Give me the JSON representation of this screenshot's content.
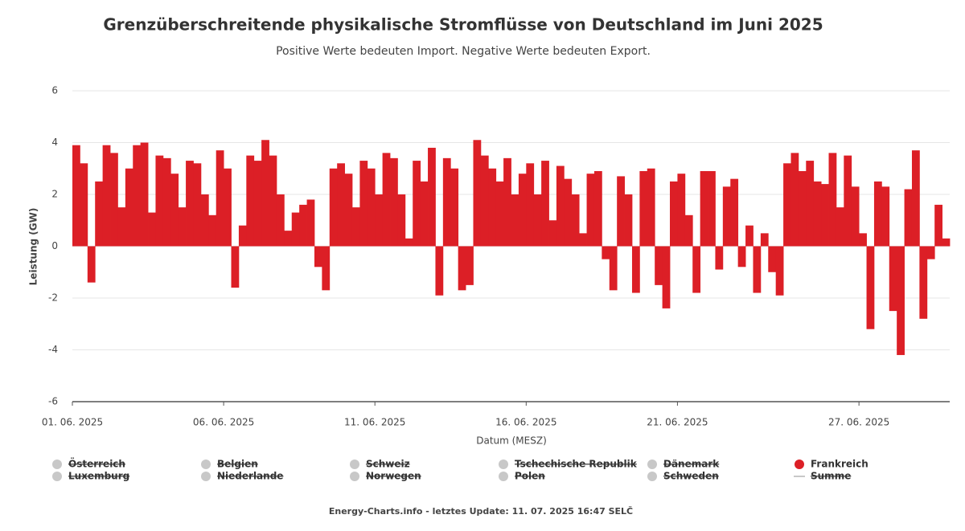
{
  "chart_data": {
    "type": "bar",
    "title": "Grenzüberschreitende physikalische Stromflüsse von Deutschland im Juni 2025",
    "subtitle": "Positive Werte bedeuten Import. Negative Werte bedeuten Export.",
    "y_label": "Leistung (GW)",
    "x_label": "Datum (MESZ)",
    "footer": "Energy-Charts.info - letztes Update: 11. 07. 2025 16:47 SELČ",
    "xlim": [
      1,
      30
    ],
    "xticks": [
      {
        "value": 1,
        "label": "01. 06. 2025"
      },
      {
        "value": 6,
        "label": "06. 06. 2025"
      },
      {
        "value": 11,
        "label": "11. 06. 2025"
      },
      {
        "value": 16,
        "label": "16. 06. 2025"
      },
      {
        "value": 21,
        "label": "21. 06. 2025"
      },
      {
        "value": 27,
        "label": "27. 06. 2025"
      }
    ],
    "ylim": [
      -6,
      6
    ],
    "yticks": [
      -6,
      -4,
      -2,
      0,
      2,
      4,
      6
    ],
    "grid": true,
    "bar_width": 0.25,
    "x": [
      1,
      1.25,
      1.5,
      1.75,
      2,
      2.25,
      2.5,
      2.75,
      3,
      3.25,
      3.5,
      3.75,
      4,
      4.25,
      4.5,
      4.75,
      5,
      5.25,
      5.5,
      5.75,
      6,
      6.25,
      6.5,
      6.75,
      7,
      7.25,
      7.5,
      7.75,
      8,
      8.25,
      8.5,
      8.75,
      9,
      9.25,
      9.5,
      9.75,
      10,
      10.25,
      10.5,
      10.75,
      11,
      11.25,
      11.5,
      11.75,
      12,
      12.25,
      12.5,
      12.75,
      13,
      13.25,
      13.5,
      13.75,
      14,
      14.25,
      14.5,
      14.75,
      15,
      15.25,
      15.5,
      15.75,
      16,
      16.25,
      16.5,
      16.75,
      17,
      17.25,
      17.5,
      17.75,
      18,
      18.25,
      18.5,
      18.75,
      19,
      19.25,
      19.5,
      19.75,
      20,
      20.25,
      20.5,
      20.75,
      21,
      21.25,
      21.5,
      21.75,
      22,
      22.25,
      22.5,
      22.75,
      23,
      23.25,
      23.5,
      23.75,
      24,
      24.25,
      24.5,
      24.75,
      25,
      25.25,
      25.5,
      25.75,
      26,
      26.25,
      26.5,
      26.75,
      27,
      27.25,
      27.5,
      27.75,
      28,
      28.25,
      28.5,
      28.75,
      29,
      29.25,
      29.5,
      29.75
    ],
    "series": [
      {
        "name": "Frankreich",
        "color": "#dc1f26",
        "values": [
          3.9,
          3.2,
          -1.4,
          2.5,
          3.9,
          3.6,
          1.5,
          3.0,
          3.9,
          4.0,
          1.3,
          3.5,
          3.4,
          2.8,
          1.5,
          3.3,
          3.2,
          2.0,
          1.2,
          3.7,
          3.0,
          -1.6,
          0.8,
          3.5,
          3.3,
          4.1,
          3.5,
          2.0,
          0.6,
          1.3,
          1.6,
          1.8,
          -0.8,
          -1.7,
          3.0,
          3.2,
          2.8,
          1.5,
          3.3,
          3.0,
          2.0,
          3.6,
          3.4,
          2.0,
          0.3,
          3.3,
          2.5,
          3.8,
          -1.9,
          3.4,
          3.0,
          -1.7,
          -1.5,
          4.1,
          3.5,
          3.0,
          2.5,
          3.4,
          2.0,
          2.8,
          3.2,
          2.0,
          3.3,
          1.0,
          3.1,
          2.6,
          2.0,
          0.5,
          2.8,
          2.9,
          -0.5,
          -1.7,
          2.7,
          2.0,
          -1.8,
          2.9,
          3.0,
          -1.5,
          -2.4,
          2.5,
          2.8,
          1.2,
          -1.8,
          2.9,
          2.9,
          -0.9,
          2.3,
          2.6,
          -0.8,
          0.8,
          -1.8,
          0.5,
          -1.0,
          -1.9,
          3.2,
          3.6,
          2.9,
          3.3,
          2.5,
          2.4,
          3.6,
          1.5,
          3.5,
          2.3,
          0.5,
          -3.2,
          2.5,
          2.3,
          -2.5,
          -4.2,
          2.2,
          3.7,
          -2.8,
          -0.5,
          1.6,
          0.3
        ]
      }
    ],
    "hidden_series": [
      {
        "name": "Österreich"
      },
      {
        "name": "Belgien"
      },
      {
        "name": "Schweiz"
      },
      {
        "name": "Tschechische Republik"
      },
      {
        "name": "Dänemark"
      },
      {
        "name": "Luxemburg"
      },
      {
        "name": "Niederlande"
      },
      {
        "name": "Norwegen"
      },
      {
        "name": "Polen"
      },
      {
        "name": "Schweden"
      },
      {
        "name": "Summe",
        "marker": "line"
      }
    ]
  }
}
